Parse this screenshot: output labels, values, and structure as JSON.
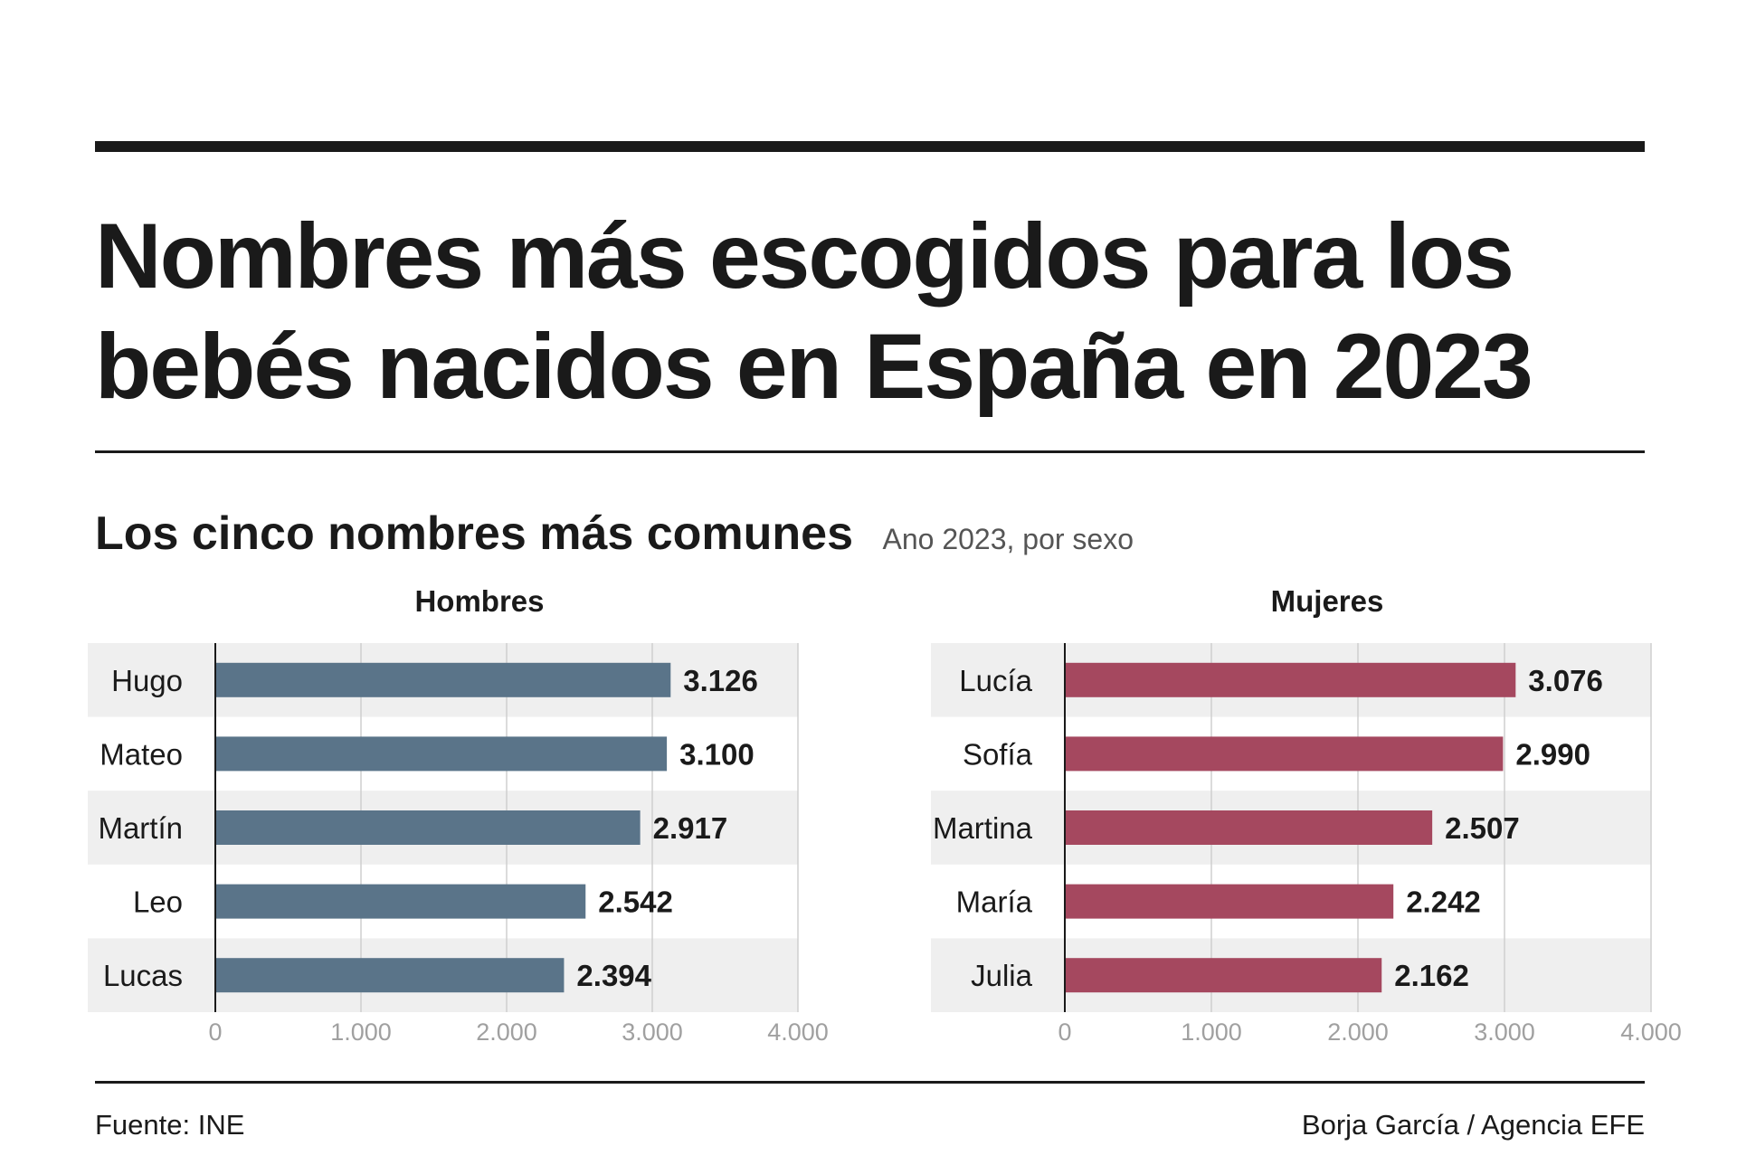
{
  "header": {
    "title_line1": "Nombres más escogidos para los",
    "title_line2": "bebés nacidos en España en 2023"
  },
  "subheader": {
    "subtitle": "Los cinco nombres más comunes",
    "note": "Ano 2023, por sexo"
  },
  "footer": {
    "source": "Fuente: INE",
    "credit": "Borja García / Agencia EFE"
  },
  "chart_data": [
    {
      "type": "bar",
      "orientation": "horizontal",
      "title": "Hombres",
      "categories": [
        "Hugo",
        "Mateo",
        "Martín",
        "Leo",
        "Lucas"
      ],
      "values": [
        3126,
        3100,
        2917,
        2542,
        2394
      ],
      "value_labels": [
        "3.126",
        "3.100",
        "2.917",
        "2.542",
        "2.394"
      ],
      "xlim": [
        0,
        4000
      ],
      "ticks": [
        0,
        1000,
        2000,
        3000,
        4000
      ],
      "tick_labels": [
        "0",
        "1.000",
        "2.000",
        "3.000",
        "4.000"
      ],
      "color": "#5a7489",
      "grid": true
    },
    {
      "type": "bar",
      "orientation": "horizontal",
      "title": "Mujeres",
      "categories": [
        "Lucía",
        "Sofía",
        "Martina",
        "María",
        "Julia"
      ],
      "values": [
        3076,
        2990,
        2507,
        2242,
        2162
      ],
      "value_labels": [
        "3.076",
        "2.990",
        "2.507",
        "2.242",
        "2.162"
      ],
      "xlim": [
        0,
        4000
      ],
      "ticks": [
        0,
        1000,
        2000,
        3000,
        4000
      ],
      "tick_labels": [
        "0",
        "1.000",
        "2.000",
        "3.000",
        "4.000"
      ],
      "color": "#a5485f",
      "grid": true
    }
  ]
}
